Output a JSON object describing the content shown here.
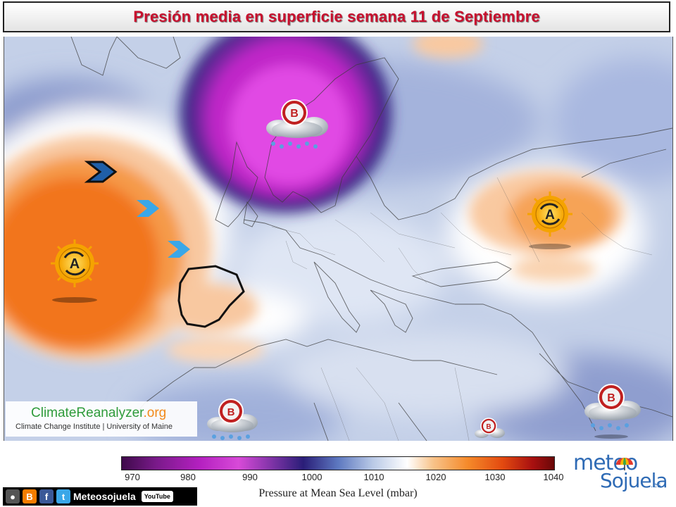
{
  "title": "Presión media en superficie semana 11 de Septiembre",
  "map": {
    "high_pressure_label": "A",
    "low_pressure_label": "B",
    "high_centers": [
      "atlantic-high",
      "eastern-europe-high"
    ],
    "low_centers": [
      "scandinavia-low",
      "west-africa-low",
      "sinai-low",
      "middle-east-low"
    ]
  },
  "logo": {
    "name_main": "ClimateReanalyzer",
    "name_suffix": ".org",
    "subtitle": "Climate Change Institute | University of Maine"
  },
  "colorbar": {
    "ticks": [
      "970",
      "980",
      "990",
      "1000",
      "1010",
      "1020",
      "1030",
      "1040"
    ],
    "label": "Pressure at Mean Sea Level (mbar)",
    "range": [
      970,
      1040
    ],
    "colors": [
      "#3e0a4a",
      "#b420c0",
      "#2a1e78",
      "#5d78c0",
      "#ffffff",
      "#f58a2a",
      "#a81010"
    ]
  },
  "footer": {
    "name": "Meteosojuela",
    "youtube_label": "YouTube"
  },
  "brand": {
    "part1": "meteo",
    "part2": "Sojuela",
    "suffix": ".es"
  },
  "colors": {
    "title": "#c8102e",
    "brand": "#2f6bb5",
    "high": "#f58a2a",
    "low": "#c020c8"
  }
}
